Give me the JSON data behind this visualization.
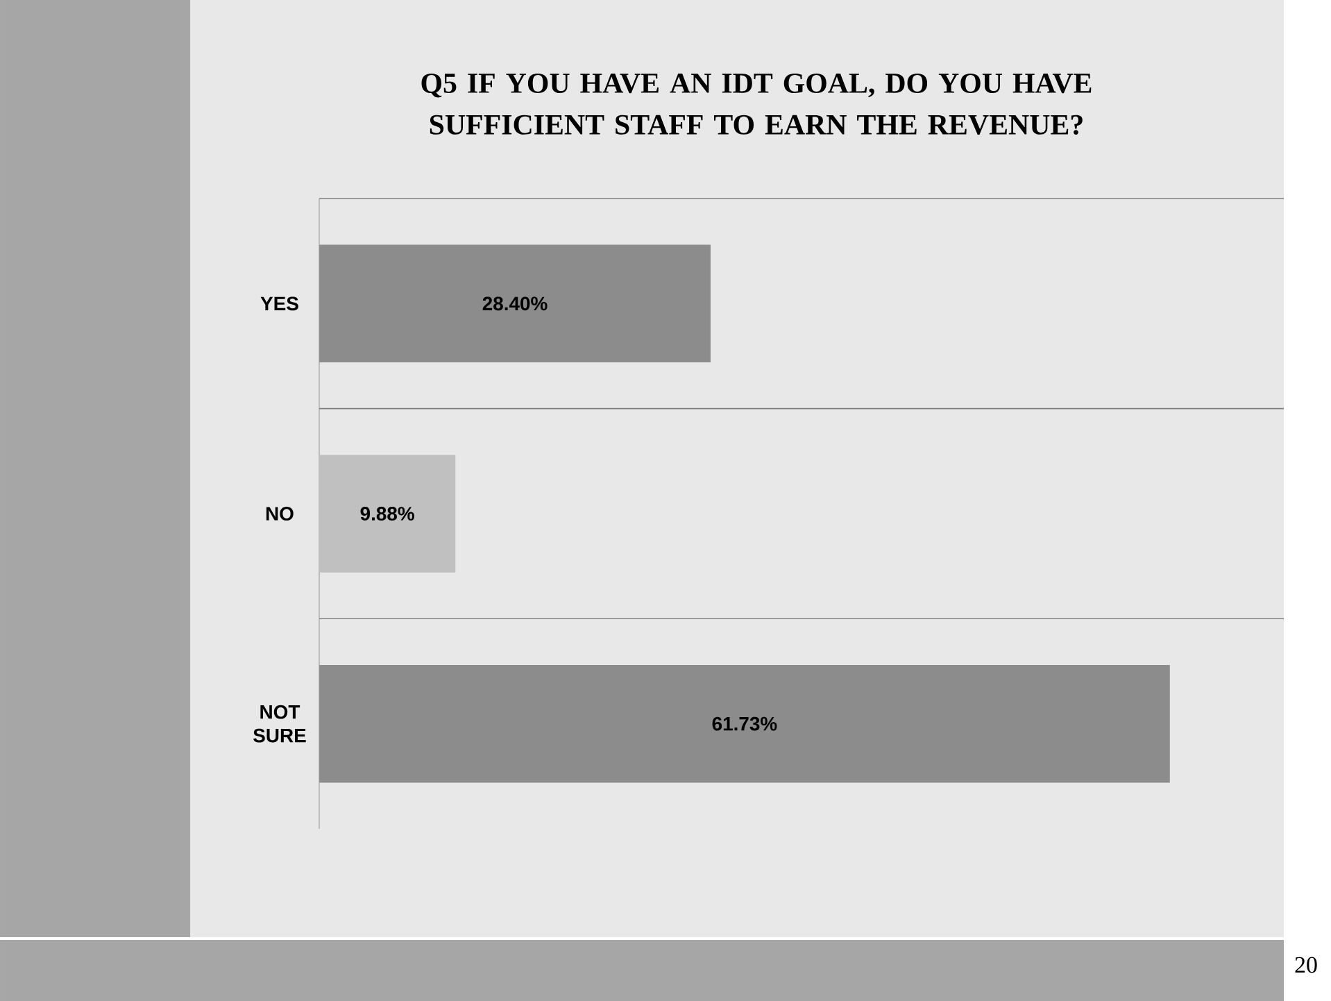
{
  "chart_data": {
    "type": "bar",
    "orientation": "horizontal",
    "title": "Q5 IF YOU HAVE AN IDT GOAL, DO YOU HAVE SUFFICIENT STAFF TO EARN THE REVENUE?",
    "categories": [
      "YES",
      "NO",
      "NOT SURE"
    ],
    "values": [
      28.4,
      9.88,
      61.73
    ],
    "colors": [
      "#8c8c8c",
      "#c0c0c0",
      "#8c8c8c"
    ],
    "xlim": [
      0,
      70
    ],
    "data_labels": true,
    "value_labels": [
      "28.40%",
      "9.88%",
      "61.73%"
    ],
    "grid": "y",
    "tick_labels": "y",
    "annotations": [
      "20"
    ]
  }
}
